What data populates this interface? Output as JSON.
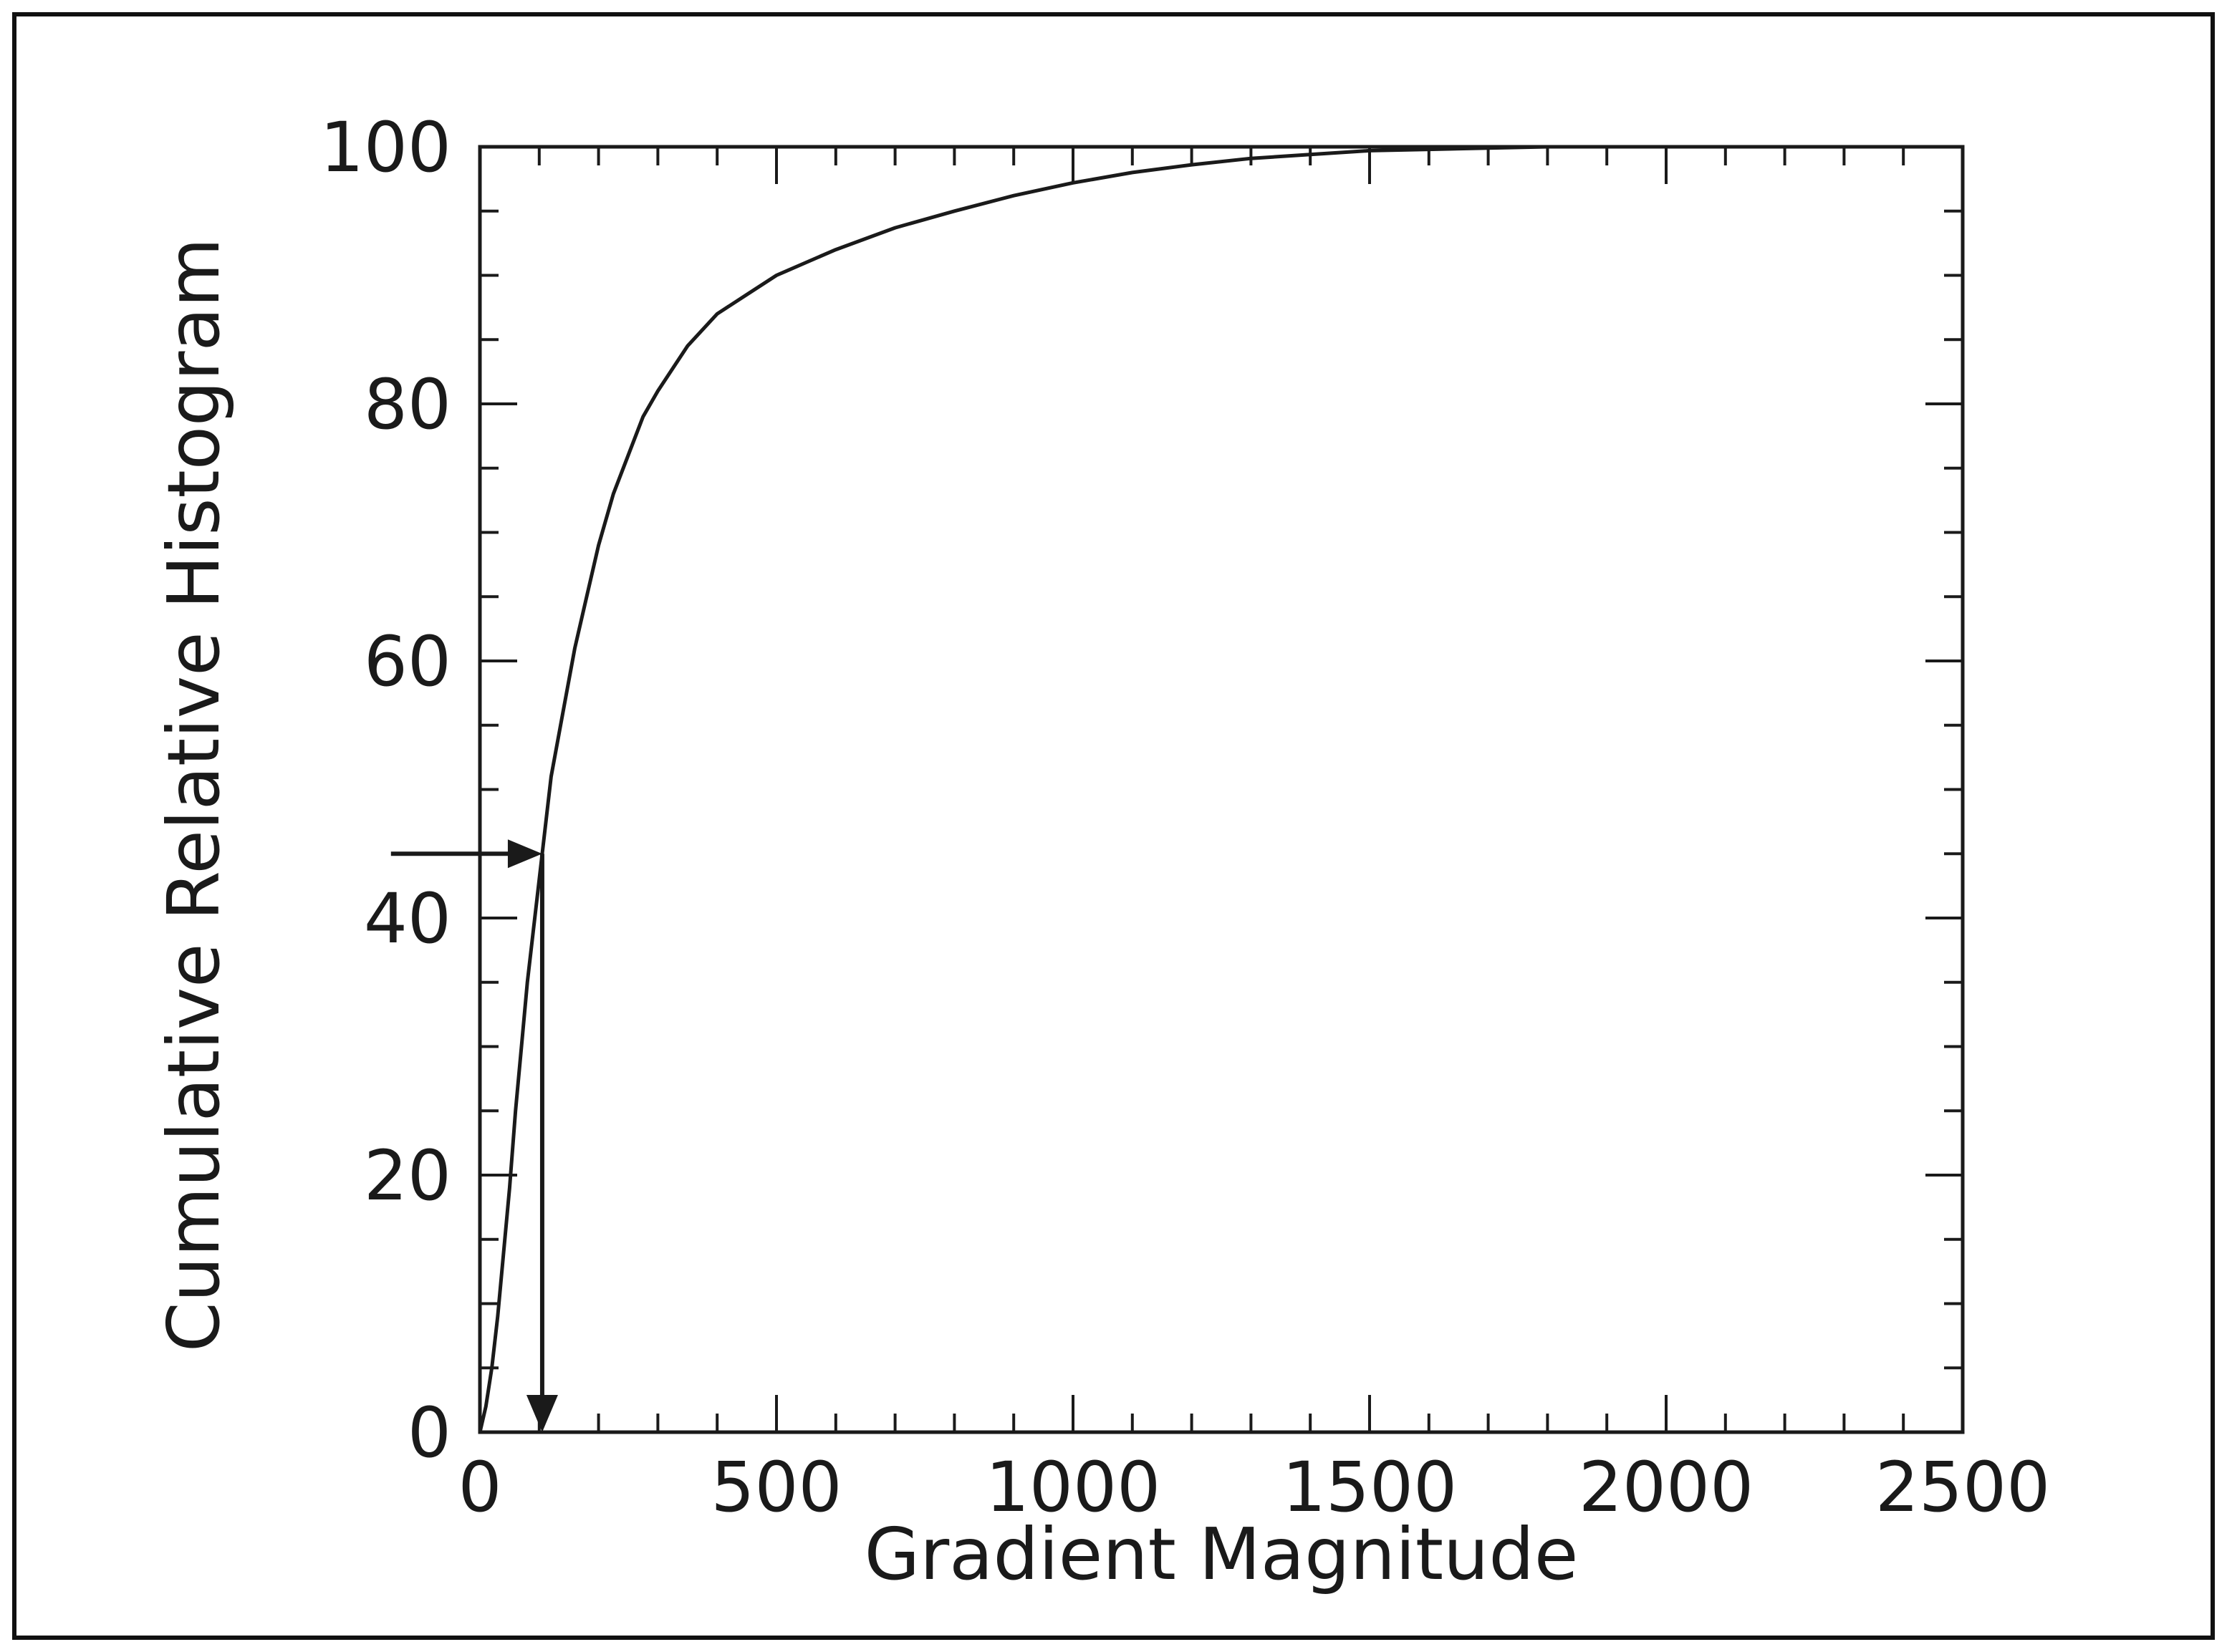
{
  "chart_data": {
    "type": "line",
    "xlabel": "Gradient Magnitude",
    "ylabel": "Cumulative Relative Histogram",
    "xlim": [
      0,
      2500
    ],
    "ylim": [
      0,
      100
    ],
    "x_ticks": [
      "0",
      "500",
      "1000",
      "1500",
      "2000",
      "2500"
    ],
    "y_ticks": [
      "0",
      "20",
      "40",
      "60",
      "80",
      "100"
    ],
    "grid": false,
    "series": [
      {
        "color": "#1a1a1a",
        "x": [
          0,
          10,
          20,
          30,
          40,
          50,
          60,
          70,
          80,
          90,
          100,
          110,
          120,
          140,
          160,
          180,
          200,
          225,
          250,
          275,
          300,
          350,
          400,
          450,
          500,
          550,
          600,
          700,
          800,
          900,
          1000,
          1100,
          1200,
          1300,
          1400,
          1500,
          1600,
          1700,
          1800,
          2000,
          2250,
          2500
        ],
        "y": [
          0,
          2,
          5,
          9,
          14,
          19,
          25,
          30,
          35,
          39,
          43,
          47,
          51,
          56,
          61,
          65,
          69,
          73,
          76,
          79,
          81,
          84.5,
          87,
          88.5,
          90,
          91,
          92,
          93.7,
          95,
          96.2,
          97.2,
          98,
          98.6,
          99.1,
          99.4,
          99.7,
          99.8,
          99.9,
          100,
          100,
          100,
          100
        ]
      }
    ],
    "annotations": [
      {
        "type": "arrow",
        "direction": "right",
        "from_x": -150,
        "y": 45,
        "to_x": 105
      },
      {
        "type": "arrow",
        "direction": "down",
        "x": 105,
        "from_y": 45,
        "to_y": 0
      }
    ]
  }
}
